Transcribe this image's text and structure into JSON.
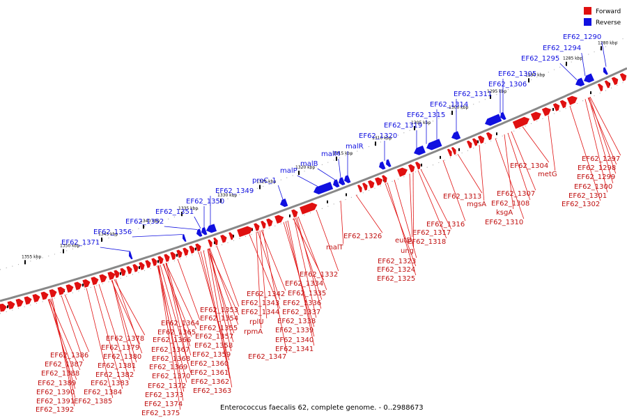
{
  "caption": "Enterococcus faecalis 62, complete genome. - 0..2988673",
  "legend": [
    {
      "label": "Forward",
      "color": "#e01010"
    },
    {
      "label": "Reverse",
      "color": "#1010e0"
    }
  ],
  "scale_ticks": [
    "1355 kbp",
    "1350 kbp",
    "1345 kbp",
    "1340 kbp",
    "1335 kbp",
    "1330 kbp",
    "1325 kbp",
    "1320 kbp",
    "1315 kbp",
    "1310 kbp",
    "1305 kbp",
    "1300 kbp",
    "1295 kbp",
    "1290 kbp",
    "1285 kbp",
    "1280 kbp"
  ],
  "reverse_labels": [
    "EF62_1290",
    "EF62_1294",
    "EF62_1295",
    "EF62_1305",
    "EF62_1306",
    "EF62_1311",
    "EF62_1314",
    "EF62_1315",
    "EF62_1319",
    "EF62_1320",
    "malR",
    "malM",
    "malB",
    "malP",
    "proC_1",
    "EF62_1349",
    "EF62_1350",
    "EF62_1351",
    "EF62_1352",
    "EF62_1356",
    "EF62_1371"
  ],
  "forward_labels": [
    "EF62_1297",
    "EF62_1298",
    "EF62_1299",
    "EF62_1300",
    "EF62_1301",
    "EF62_1302",
    "metG",
    "EF62_1304",
    "EF62_1307",
    "EF62_1308",
    "ksgA",
    "EF62_1310",
    "mgsA",
    "EF62_1313",
    "EF62_1316",
    "EF62_1317",
    "EF62_1318",
    "ung",
    "eutD",
    "EF62_1323",
    "EF62_1324",
    "EF62_1325",
    "EF62_1326",
    "malT",
    "EF62_1332",
    "EF62_1334",
    "EF62_1335",
    "EF62_1336",
    "EF62_1337",
    "EF62_1338",
    "EF62_1339",
    "EF62_1340",
    "EF62_1341",
    "EF62_1342",
    "EF62_1343",
    "EF62_1344",
    "rplU",
    "rpmA",
    "EF62_1347",
    "EF62_1353",
    "EF62_1354",
    "EF62_1355",
    "EF62_1357",
    "EF62_1358",
    "EF62_1359",
    "EF62_1360",
    "EF62_1361",
    "EF62_1362",
    "EF62_1363",
    "EF62_1364",
    "EF62_1365",
    "EF62_1366",
    "EF62_1367",
    "EF62_1368",
    "EF62_1369",
    "EF62_1370",
    "EF62_1372",
    "EF62_1373",
    "EF62_1374",
    "EF62_1375",
    "EF62_1378",
    "EF62_1379",
    "EF62_1380",
    "EF62_1381",
    "EF62_1382",
    "EF62_1383",
    "EF62_1384",
    "EF62_1385",
    "EF62_1386",
    "EF62_1387",
    "EF62_1388",
    "EF62_1389",
    "EF62_1390",
    "EF62_1391",
    "EF62_1392"
  ]
}
